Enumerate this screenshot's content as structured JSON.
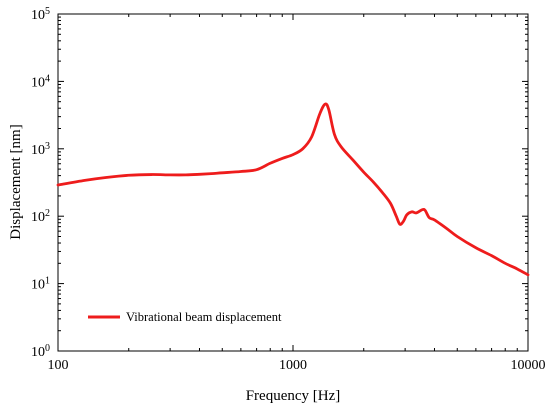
{
  "chart_data": {
    "type": "line",
    "xlabel": "Frequency [Hz]",
    "ylabel": "Displacement [nm]",
    "xscale": "log",
    "yscale": "log",
    "xlim": [
      100,
      10000
    ],
    "ylim": [
      1,
      100000
    ],
    "grid": false,
    "legend_position": "bottom-left",
    "x_ticks": [
      {
        "value": 100,
        "label": "100"
      },
      {
        "value": 1000,
        "label": "1000"
      },
      {
        "value": 10000,
        "label": "10000"
      }
    ],
    "y_ticks": [
      {
        "value": 1,
        "base": "10",
        "exp": "0"
      },
      {
        "value": 10,
        "base": "10",
        "exp": "1"
      },
      {
        "value": 100,
        "base": "10",
        "exp": "2"
      },
      {
        "value": 1000,
        "base": "10",
        "exp": "3"
      },
      {
        "value": 10000,
        "base": "10",
        "exp": "4"
      },
      {
        "value": 100000,
        "base": "10",
        "exp": "5"
      }
    ],
    "series": [
      {
        "name": "Vibrational beam displacement",
        "color": "#ee1c1c",
        "points": [
          [
            100,
            290
          ],
          [
            130,
            340
          ],
          [
            160,
            375
          ],
          [
            200,
            405
          ],
          [
            250,
            415
          ],
          [
            300,
            410
          ],
          [
            350,
            410
          ],
          [
            400,
            418
          ],
          [
            450,
            428
          ],
          [
            500,
            440
          ],
          [
            600,
            460
          ],
          [
            700,
            490
          ],
          [
            800,
            610
          ],
          [
            900,
            720
          ],
          [
            1000,
            820
          ],
          [
            1100,
            1000
          ],
          [
            1200,
            1500
          ],
          [
            1300,
            3300
          ],
          [
            1370,
            4600
          ],
          [
            1420,
            3800
          ],
          [
            1500,
            1650
          ],
          [
            1600,
            1080
          ],
          [
            1800,
            680
          ],
          [
            2000,
            450
          ],
          [
            2200,
            320
          ],
          [
            2400,
            225
          ],
          [
            2600,
            155
          ],
          [
            2750,
            100
          ],
          [
            2850,
            76
          ],
          [
            2950,
            84
          ],
          [
            3050,
            105
          ],
          [
            3200,
            116
          ],
          [
            3350,
            112
          ],
          [
            3550,
            125
          ],
          [
            3650,
            122
          ],
          [
            3800,
            95
          ],
          [
            4000,
            88
          ],
          [
            4500,
            66
          ],
          [
            5000,
            50
          ],
          [
            6000,
            34
          ],
          [
            7000,
            26
          ],
          [
            8000,
            20
          ],
          [
            9000,
            16.5
          ],
          [
            10000,
            13.5
          ]
        ]
      }
    ]
  }
}
